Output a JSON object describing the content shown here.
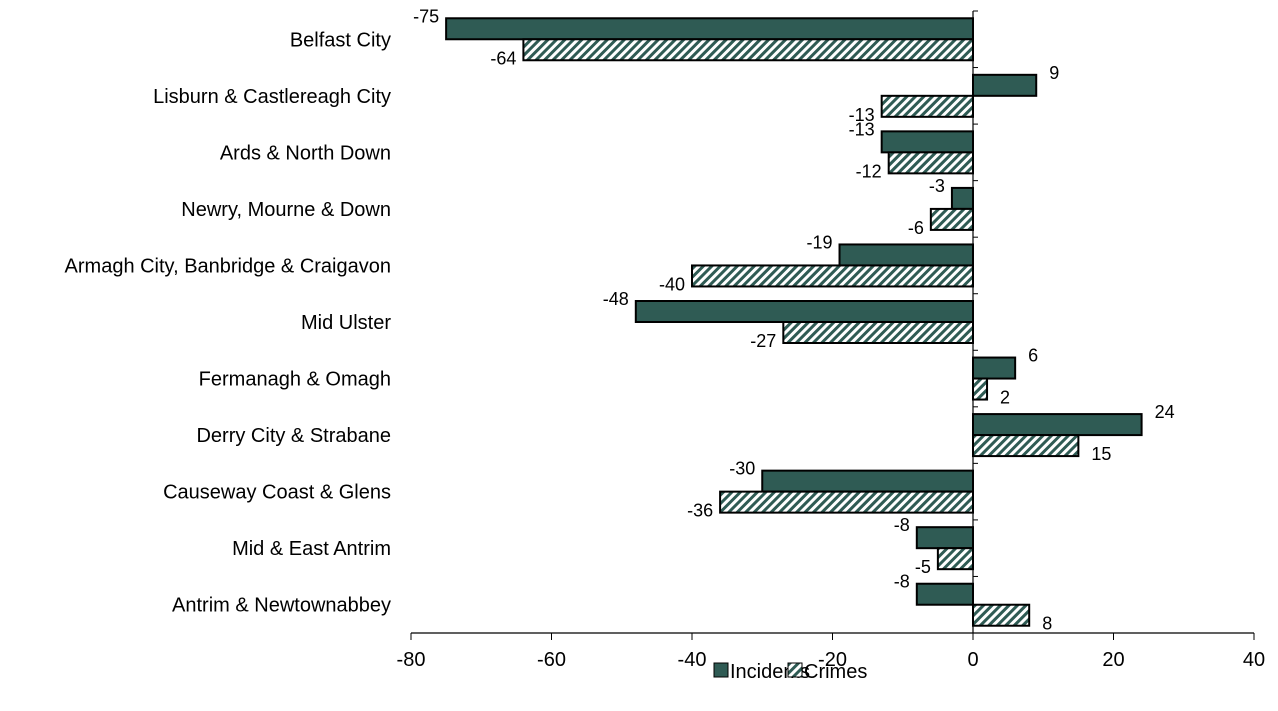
{
  "chart_data": {
    "type": "bar",
    "orientation": "horizontal",
    "categories": [
      "Belfast City",
      "Lisburn & Castlereagh City",
      "Ards & North Down",
      "Newry, Mourne & Down",
      "Armagh City, Banbridge & Craigavon",
      "Mid Ulster",
      "Fermanagh & Omagh",
      "Derry City & Strabane",
      "Causeway Coast & Glens",
      "Mid & East Antrim",
      "Antrim & Newtownabbey"
    ],
    "series": [
      {
        "name": "Incidents",
        "values": [
          -75,
          9,
          -13,
          -3,
          -19,
          -48,
          6,
          24,
          -30,
          -8,
          -8
        ],
        "color": "#2f5b54",
        "pattern": "solid"
      },
      {
        "name": "Crimes",
        "values": [
          -64,
          -13,
          -12,
          -6,
          -40,
          -27,
          2,
          15,
          -36,
          -5,
          8
        ],
        "color": "#2f5b54",
        "pattern": "diagonal-hatch"
      }
    ],
    "xlim": [
      -80,
      40
    ],
    "xticks": [
      -80,
      -60,
      -40,
      -20,
      0,
      20,
      40
    ],
    "title": "",
    "xlabel": "",
    "ylabel": "",
    "grid": false,
    "legend_position": "bottom"
  }
}
